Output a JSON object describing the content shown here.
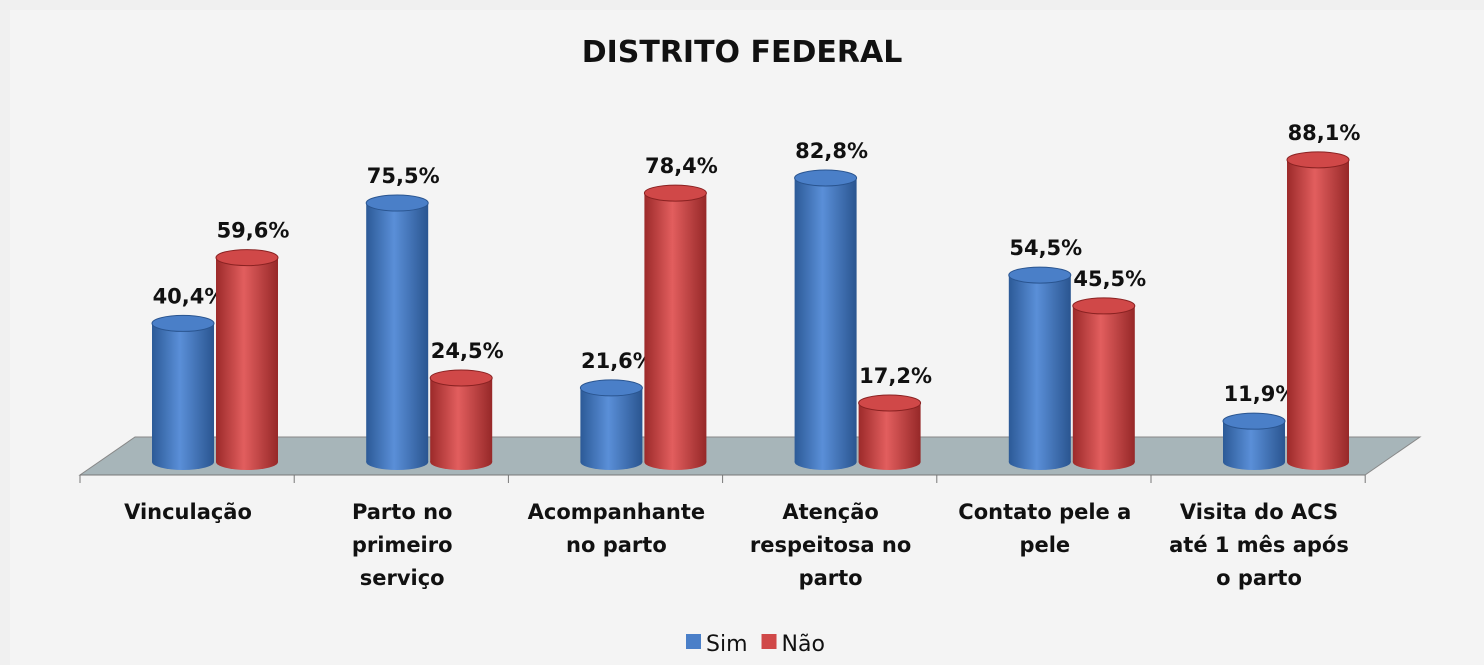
{
  "chart_data": {
    "type": "bar3d",
    "title": "DISTRITO FEDERAL",
    "categories": [
      "Vinculação",
      "Parto no\nprimeiro\nserviço",
      "Acompanhante\nno parto",
      "Atenção\nrespeitosa no\nparto",
      "Contato pele a\npele",
      "Visita do ACS\naté 1 mês após\no parto"
    ],
    "series": [
      {
        "name": "Sim",
        "color": "#4a7fc8",
        "values": [
          40.4,
          75.5,
          21.6,
          82.8,
          54.5,
          11.9
        ],
        "value_labels": [
          "40,4%",
          "75,5%",
          "21,6%",
          "82,8%",
          "54,5%",
          "11,9%"
        ]
      },
      {
        "name": "Não",
        "color": "#d04848",
        "values": [
          59.6,
          24.5,
          78.4,
          17.2,
          45.5,
          88.1
        ],
        "value_labels": [
          "59,6%",
          "24,5%",
          "78,4%",
          "17,2%",
          "45,5%",
          "88,1%"
        ]
      }
    ],
    "legend": "bottom"
  }
}
